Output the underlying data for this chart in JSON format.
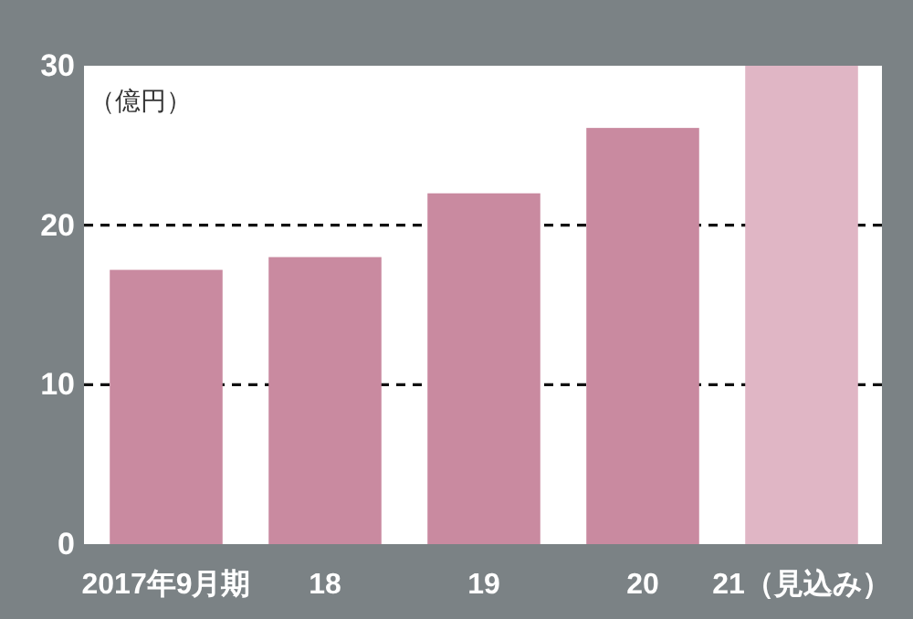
{
  "chart_data": {
    "type": "bar",
    "ylabel": "（億円）",
    "categories": [
      "2017年9月期",
      "18",
      "19",
      "20",
      "21（見込み）"
    ],
    "values": [
      17.2,
      18.0,
      22.0,
      26.1,
      30
    ],
    "colors": [
      "#c98aa0",
      "#c98aa0",
      "#c98aa0",
      "#c98aa0",
      "#e0b6c5"
    ],
    "ylim": [
      0,
      30
    ],
    "yticks": [
      0,
      10,
      20,
      30
    ],
    "grid": "y",
    "line_style": "dashed"
  }
}
